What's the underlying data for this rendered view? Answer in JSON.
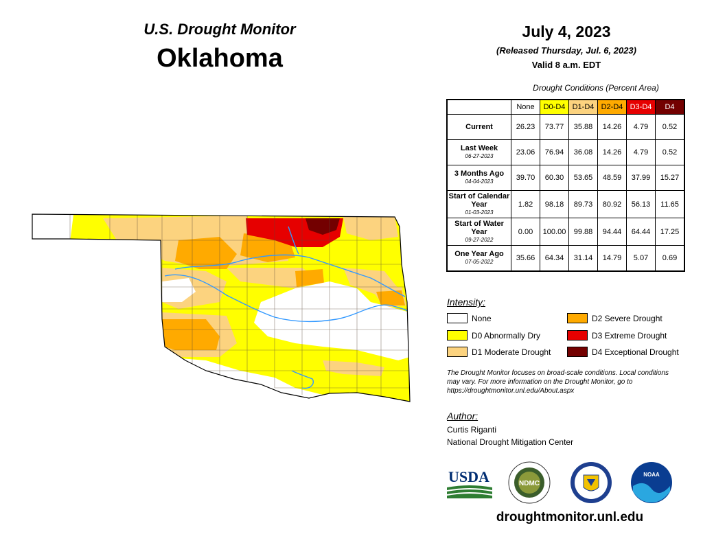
{
  "header": {
    "monitor_title": "U.S. Drought Monitor",
    "state": "Oklahoma",
    "date": "July 4, 2023",
    "released": "(Released Thursday, Jul. 6, 2023)",
    "valid": "Valid 8 a.m. EDT"
  },
  "table": {
    "caption": "Drought Conditions (Percent Area)",
    "columns": [
      {
        "label": "None",
        "bg": "#ffffff",
        "fg": "#000000"
      },
      {
        "label": "D0-D4",
        "bg": "#ffff00",
        "fg": "#000000"
      },
      {
        "label": "D1-D4",
        "bg": "#fcd37f",
        "fg": "#000000"
      },
      {
        "label": "D2-D4",
        "bg": "#ffaa00",
        "fg": "#000000"
      },
      {
        "label": "D3-D4",
        "bg": "#e60000",
        "fg": "#ffffff"
      },
      {
        "label": "D4",
        "bg": "#730000",
        "fg": "#ffffff"
      }
    ],
    "rows": [
      {
        "label": "Current",
        "date": "",
        "values": [
          "26.23",
          "73.77",
          "35.88",
          "14.26",
          "4.79",
          "0.52"
        ]
      },
      {
        "label": "Last Week",
        "date": "06-27-2023",
        "values": [
          "23.06",
          "76.94",
          "36.08",
          "14.26",
          "4.79",
          "0.52"
        ]
      },
      {
        "label": "3 Months Ago",
        "date": "04-04-2023",
        "values": [
          "39.70",
          "60.30",
          "53.65",
          "48.59",
          "37.99",
          "15.27"
        ]
      },
      {
        "label": "Start of Calendar Year",
        "date": "01-03-2023",
        "values": [
          "1.82",
          "98.18",
          "89.73",
          "80.92",
          "56.13",
          "11.65"
        ]
      },
      {
        "label": "Start of Water Year",
        "date": "09-27-2022",
        "values": [
          "0.00",
          "100.00",
          "99.88",
          "94.44",
          "64.44",
          "17.25"
        ]
      },
      {
        "label": "One Year Ago",
        "date": "07-05-2022",
        "values": [
          "35.66",
          "64.34",
          "31.14",
          "14.79",
          "5.07",
          "0.69"
        ]
      }
    ]
  },
  "legend": {
    "heading": "Intensity:",
    "items": [
      {
        "label": "None",
        "color": "#ffffff"
      },
      {
        "label": "D0 Abnormally Dry",
        "color": "#ffff00"
      },
      {
        "label": "D1 Moderate Drought",
        "color": "#fcd37f"
      },
      {
        "label": "D2 Severe Drought",
        "color": "#ffaa00"
      },
      {
        "label": "D3 Extreme Drought",
        "color": "#e60000"
      },
      {
        "label": "D4 Exceptional Drought",
        "color": "#730000"
      }
    ]
  },
  "disclaimer": "The Drought Monitor focuses on broad-scale conditions. Local conditions may vary. For more information on the Drought Monitor, go to https://droughtmonitor.unl.edu/About.aspx",
  "author": {
    "heading": "Author:",
    "name": "Curtis Riganti",
    "org": "National Drought Mitigation Center"
  },
  "logos": {
    "usda": "USDA",
    "ndmc": "NDMC",
    "noaa": "NOAA"
  },
  "site_url": "droughtmonitor.unl.edu"
}
